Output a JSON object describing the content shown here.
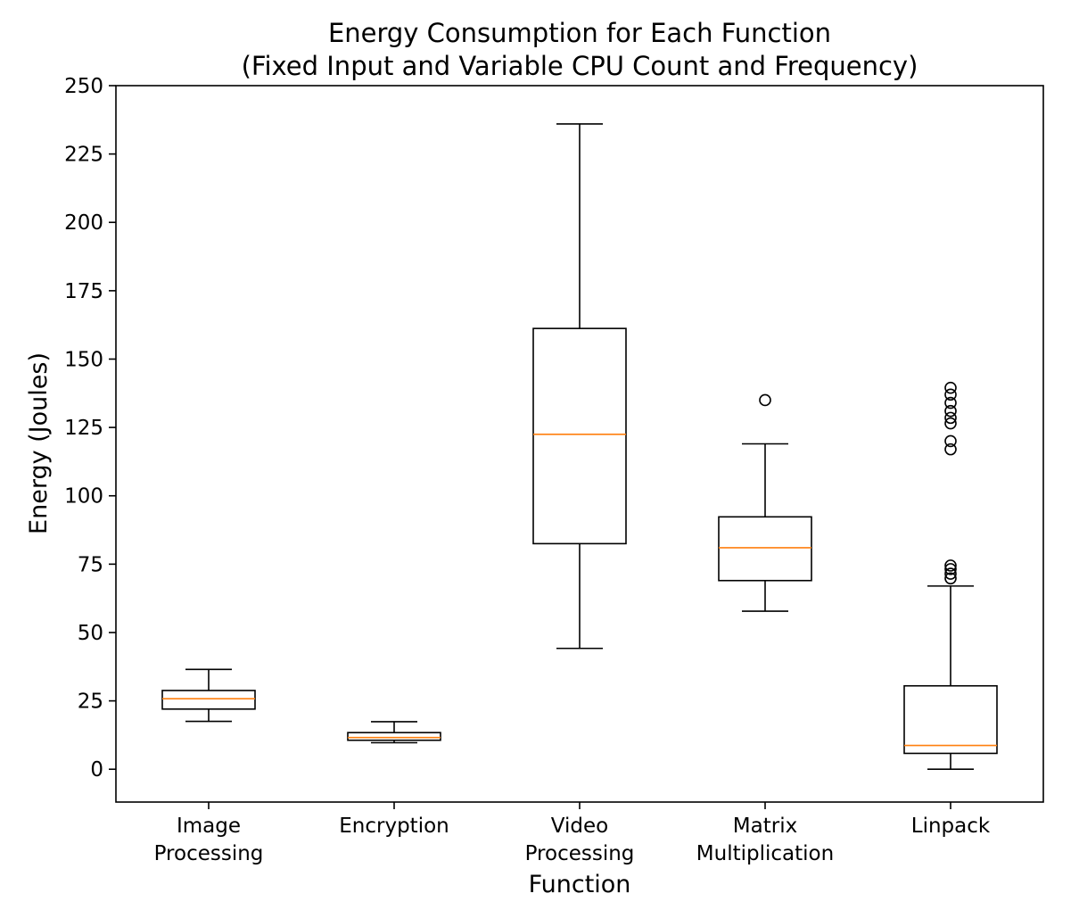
{
  "chart_data": {
    "type": "box",
    "title_lines": [
      "Energy Consumption for Each Function",
      "(Fixed Input and Variable CPU Count and Frequency)"
    ],
    "xlabel": "Function",
    "ylabel": "Energy (Joules)",
    "ylim": [
      -12,
      250
    ],
    "yticks": [
      0,
      25,
      50,
      75,
      100,
      125,
      150,
      175,
      200,
      225,
      250
    ],
    "grid": false,
    "median_color": "#ff7f0e",
    "box_color": "#000000",
    "categories": [
      {
        "label_lines": [
          "Image",
          "Processing"
        ],
        "whisker_low": 17.5,
        "q1": 22.0,
        "median": 25.8,
        "q3": 28.8,
        "whisker_high": 36.5,
        "outliers": []
      },
      {
        "label_lines": [
          "Encryption"
        ],
        "whisker_low": 9.7,
        "q1": 10.6,
        "median": 11.6,
        "q3": 13.4,
        "whisker_high": 17.4,
        "outliers": []
      },
      {
        "label_lines": [
          "Video",
          "Processing"
        ],
        "whisker_low": 44.2,
        "q1": 82.5,
        "median": 122.5,
        "q3": 161.2,
        "whisker_high": 236.0,
        "outliers": []
      },
      {
        "label_lines": [
          "Matrix",
          "Multiplication"
        ],
        "whisker_low": 57.8,
        "q1": 69.0,
        "median": 81.0,
        "q3": 92.3,
        "whisker_high": 119.0,
        "outliers": [
          135.0
        ]
      },
      {
        "label_lines": [
          "Linpack"
        ],
        "whisker_low": 0.0,
        "q1": 5.8,
        "median": 8.7,
        "q3": 30.5,
        "whisker_high": 67.0,
        "outliers": [
          69.8,
          71.5,
          73.2,
          74.5,
          117.0,
          120.0,
          126.5,
          128.5,
          131.0,
          134.0,
          137.0,
          139.5
        ]
      }
    ]
  }
}
